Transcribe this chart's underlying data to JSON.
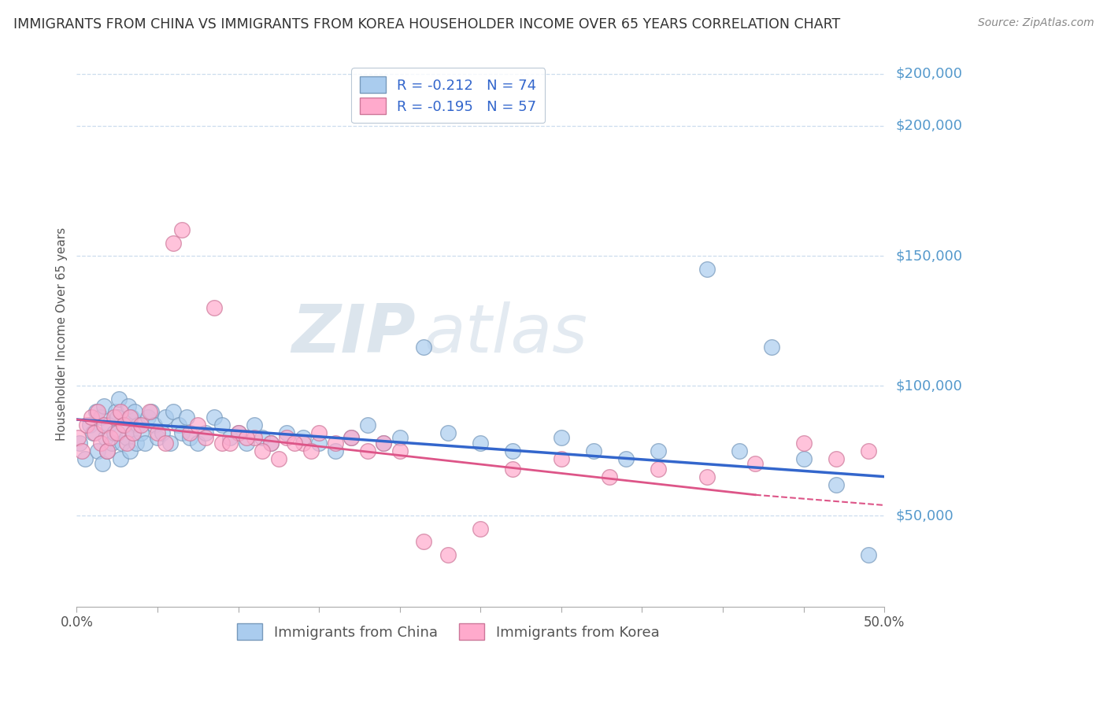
{
  "title": "IMMIGRANTS FROM CHINA VS IMMIGRANTS FROM KOREA HOUSEHOLDER INCOME OVER 65 YEARS CORRELATION CHART",
  "source": "Source: ZipAtlas.com",
  "ylabel": "Householder Income Over 65 years",
  "yaxis_labels": [
    "$50,000",
    "$100,000",
    "$150,000",
    "$200,000"
  ],
  "yaxis_values": [
    50000,
    100000,
    150000,
    200000
  ],
  "xlim": [
    0.0,
    0.5
  ],
  "ylim": [
    15000,
    225000
  ],
  "china_color": "#aaccee",
  "china_edge_color": "#7799bb",
  "korea_color": "#ffaacc",
  "korea_edge_color": "#cc7799",
  "china_line_color": "#3366cc",
  "korea_line_color": "#dd5588",
  "china_R": -0.212,
  "china_N": 74,
  "korea_R": -0.195,
  "korea_N": 57,
  "legend_label_china": "Immigrants from China",
  "legend_label_korea": "Immigrants from Korea",
  "watermark_zip": "ZIP",
  "watermark_atlas": "atlas",
  "grid_color": "#ccddee",
  "china_x": [
    0.002,
    0.005,
    0.008,
    0.01,
    0.012,
    0.013,
    0.015,
    0.016,
    0.017,
    0.018,
    0.019,
    0.02,
    0.022,
    0.023,
    0.024,
    0.025,
    0.026,
    0.027,
    0.028,
    0.03,
    0.031,
    0.032,
    0.033,
    0.034,
    0.035,
    0.036,
    0.037,
    0.038,
    0.04,
    0.042,
    0.044,
    0.046,
    0.048,
    0.05,
    0.053,
    0.055,
    0.058,
    0.06,
    0.063,
    0.065,
    0.068,
    0.07,
    0.075,
    0.08,
    0.085,
    0.09,
    0.095,
    0.1,
    0.105,
    0.11,
    0.115,
    0.12,
    0.13,
    0.14,
    0.15,
    0.16,
    0.17,
    0.18,
    0.19,
    0.2,
    0.215,
    0.23,
    0.25,
    0.27,
    0.3,
    0.32,
    0.34,
    0.36,
    0.39,
    0.41,
    0.43,
    0.45,
    0.47,
    0.49
  ],
  "china_y": [
    78000,
    72000,
    85000,
    82000,
    90000,
    75000,
    88000,
    70000,
    92000,
    80000,
    75000,
    85000,
    78000,
    82000,
    90000,
    88000,
    95000,
    72000,
    78000,
    85000,
    80000,
    92000,
    75000,
    88000,
    82000,
    90000,
    78000,
    85000,
    82000,
    78000,
    88000,
    90000,
    85000,
    80000,
    82000,
    88000,
    78000,
    90000,
    85000,
    82000,
    88000,
    80000,
    78000,
    82000,
    88000,
    85000,
    80000,
    82000,
    78000,
    85000,
    80000,
    78000,
    82000,
    80000,
    78000,
    75000,
    80000,
    85000,
    78000,
    80000,
    115000,
    82000,
    78000,
    75000,
    80000,
    75000,
    72000,
    75000,
    145000,
    75000,
    115000,
    72000,
    62000,
    35000
  ],
  "korea_x": [
    0.001,
    0.003,
    0.006,
    0.009,
    0.011,
    0.013,
    0.015,
    0.017,
    0.019,
    0.021,
    0.023,
    0.025,
    0.027,
    0.029,
    0.031,
    0.033,
    0.035,
    0.04,
    0.045,
    0.05,
    0.055,
    0.06,
    0.065,
    0.07,
    0.075,
    0.08,
    0.09,
    0.1,
    0.11,
    0.12,
    0.13,
    0.14,
    0.15,
    0.16,
    0.17,
    0.18,
    0.19,
    0.2,
    0.215,
    0.23,
    0.25,
    0.27,
    0.3,
    0.33,
    0.36,
    0.39,
    0.42,
    0.45,
    0.47,
    0.49,
    0.085,
    0.095,
    0.105,
    0.115,
    0.125,
    0.135,
    0.145
  ],
  "korea_y": [
    80000,
    75000,
    85000,
    88000,
    82000,
    90000,
    78000,
    85000,
    75000,
    80000,
    88000,
    82000,
    90000,
    85000,
    78000,
    88000,
    82000,
    85000,
    90000,
    82000,
    78000,
    155000,
    160000,
    82000,
    85000,
    80000,
    78000,
    82000,
    80000,
    78000,
    80000,
    78000,
    82000,
    78000,
    80000,
    75000,
    78000,
    75000,
    40000,
    35000,
    45000,
    68000,
    72000,
    65000,
    68000,
    65000,
    70000,
    78000,
    72000,
    75000,
    130000,
    78000,
    80000,
    75000,
    72000,
    78000,
    75000
  ]
}
